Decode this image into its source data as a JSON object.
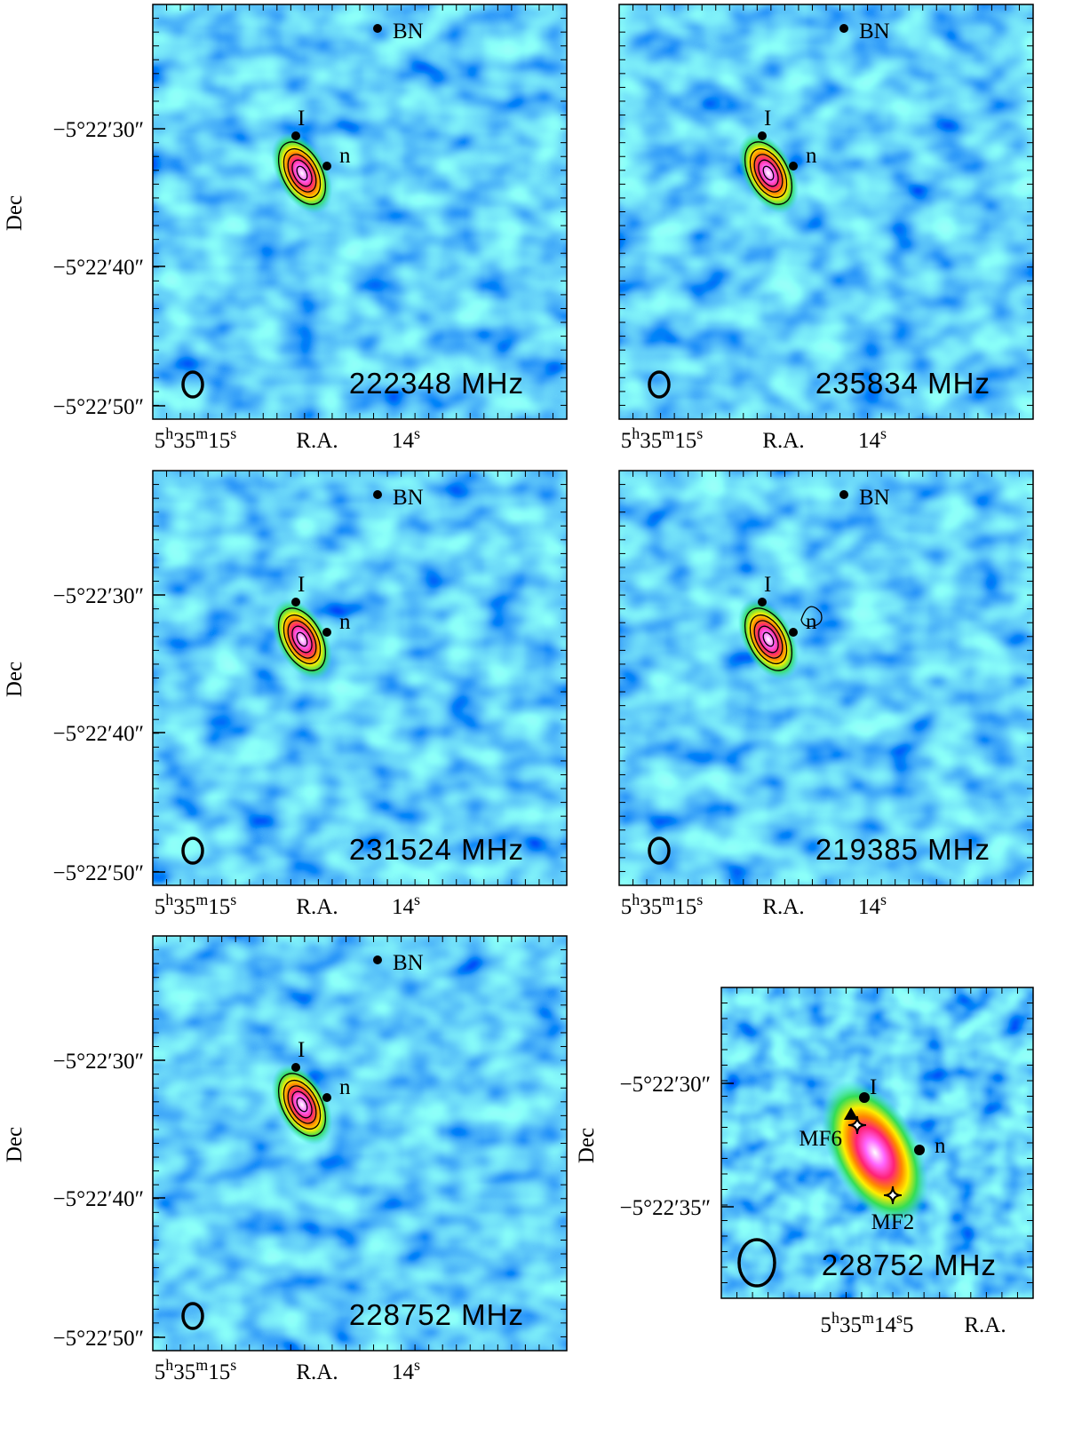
{
  "panels": [
    {
      "frequency": "222348 MHz",
      "source_labels": [
        "BN",
        "I",
        "n"
      ],
      "ylabel": "Dec",
      "yticks": [
        "−5°22′30″",
        "−5°22′40″",
        "−5°22′50″"
      ],
      "xlabel": "R.A.",
      "xticks": [
        [
          "5",
          "h",
          "35",
          "m",
          "15",
          "s"
        ],
        [
          "14",
          "s"
        ]
      ]
    },
    {
      "frequency": "235834 MHz",
      "source_labels": [
        "BN",
        "I",
        "n"
      ],
      "xlabel": "R.A.",
      "xticks": [
        [
          "5",
          "h",
          "35",
          "m",
          "15",
          "s"
        ],
        [
          "14",
          "s"
        ]
      ]
    },
    {
      "frequency": "231524 MHz",
      "source_labels": [
        "BN",
        "I",
        "n"
      ],
      "ylabel": "Dec",
      "yticks": [
        "−5°22′30″",
        "−5°22′40″",
        "−5°22′50″"
      ],
      "xlabel": "R.A.",
      "xticks": [
        [
          "5",
          "h",
          "35",
          "m",
          "15",
          "s"
        ],
        [
          "14",
          "s"
        ]
      ]
    },
    {
      "frequency": "219385 MHz",
      "source_labels": [
        "BN",
        "I",
        "n"
      ],
      "xlabel": "R.A.",
      "xticks": [
        [
          "5",
          "h",
          "35",
          "m",
          "15",
          "s"
        ],
        [
          "14",
          "s"
        ]
      ]
    },
    {
      "frequency": "228752 MHz",
      "source_labels": [
        "BN",
        "I",
        "n"
      ],
      "ylabel": "Dec",
      "yticks": [
        "−5°22′30″",
        "−5°22′40″",
        "−5°22′50″"
      ],
      "xlabel": "R.A.",
      "xticks": [
        [
          "5",
          "h",
          "35",
          "m",
          "15",
          "s"
        ],
        [
          "14",
          "s"
        ]
      ]
    }
  ],
  "inset": {
    "frequency": "228752 MHz",
    "source_labels": [
      "I",
      "n",
      "MF6",
      "MF2"
    ],
    "ylabel": "Dec",
    "yticks": [
      "−5°22′30″",
      "−5°22′35″"
    ],
    "xlabel": "R.A.",
    "xticks": [
      [
        "5",
        "h",
        "35",
        "m",
        "14",
        "s",
        "5"
      ]
    ]
  }
}
